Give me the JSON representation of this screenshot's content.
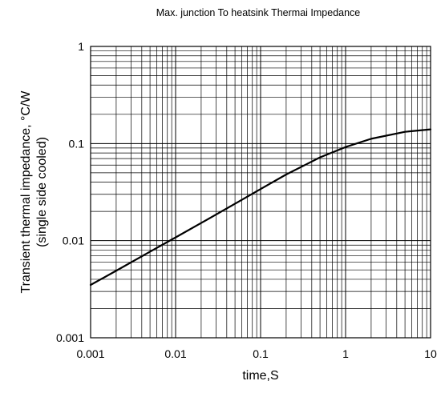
{
  "chart_data": {
    "type": "line",
    "title": "Max. junction To heatsink Thermai Impedance",
    "xlabel": "time,S",
    "ylabel_lines": [
      "Transient thermal impedance, °C/W",
      "(single side cooled)"
    ],
    "x_scale": "log",
    "y_scale": "log",
    "xlim": [
      0.001,
      10
    ],
    "ylim": [
      0.001,
      1
    ],
    "x_ticks": [
      {
        "value": 0.001,
        "label": "0.001"
      },
      {
        "value": 0.01,
        "label": "0.01"
      },
      {
        "value": 0.1,
        "label": "0.1"
      },
      {
        "value": 1,
        "label": "1"
      },
      {
        "value": 10,
        "label": "10"
      }
    ],
    "y_ticks": [
      {
        "value": 0.001,
        "label": "0.001"
      },
      {
        "value": 0.01,
        "label": "0.01"
      },
      {
        "value": 0.1,
        "label": "0.1"
      },
      {
        "value": 1,
        "label": "1"
      }
    ],
    "grid": "major and minor (log)",
    "series": [
      {
        "color": "#000000",
        "points": [
          [
            0.001,
            0.0035
          ],
          [
            0.002,
            0.0049
          ],
          [
            0.005,
            0.0077
          ],
          [
            0.01,
            0.0108
          ],
          [
            0.02,
            0.0152
          ],
          [
            0.05,
            0.024
          ],
          [
            0.1,
            0.034
          ],
          [
            0.2,
            0.048
          ],
          [
            0.5,
            0.072
          ],
          [
            1,
            0.092
          ],
          [
            2,
            0.112
          ],
          [
            5,
            0.132
          ],
          [
            10,
            0.14
          ]
        ]
      }
    ]
  }
}
